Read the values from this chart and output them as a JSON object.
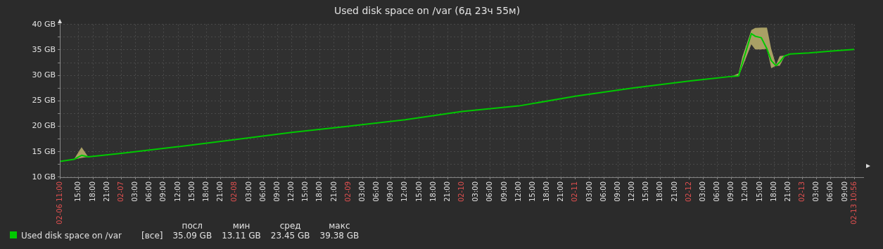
{
  "chart_data": {
    "type": "line",
    "title": "Used disk space on /var (6д 23ч 55м)",
    "x": [
      "--02-06T11:00",
      "--02-06T14:00",
      "--02-06T15:36",
      "--02-06T17:00",
      "--02-07T00:00",
      "--02-07T12:00",
      "--02-08T00:00",
      "--02-08T12:00",
      "--02-09T00:00",
      "--02-09T12:00",
      "--02-10T00:00",
      "--02-10T12:00",
      "--02-11T00:00",
      "--02-11T12:00",
      "--02-12T00:00",
      "--02-12T09:00",
      "--02-12T10:30",
      "--02-12T11:18",
      "--02-12T13:12",
      "--02-12T14:00",
      "--02-12T15:18",
      "--02-12T16:30",
      "--02-12T17:24",
      "--02-12T18:24",
      "--02-12T19:12",
      "--02-12T20:12",
      "--02-12T21:24",
      "--02-13T01:24",
      "--02-13T06:18",
      "--02-13T10:56"
    ],
    "series": [
      {
        "name": "Used disk space on /var",
        "color": "#00c800",
        "values": [
          13.1,
          13.5,
          14.3,
          14.0,
          14.7,
          16.0,
          17.4,
          18.8,
          20.0,
          21.3,
          22.9,
          24.0,
          25.9,
          27.5,
          28.9,
          29.8,
          29.9,
          32.4,
          38.2,
          37.7,
          37.4,
          35.2,
          32.9,
          31.9,
          32.6,
          33.8,
          34.2,
          34.4,
          34.8,
          35.1
        ],
        "lower": [
          13.1,
          13.5,
          13.8,
          14.0,
          14.7,
          16.0,
          17.4,
          18.8,
          20.0,
          21.3,
          22.9,
          24.0,
          25.9,
          27.5,
          28.9,
          29.8,
          29.8,
          31.6,
          36.1,
          35.1,
          35.1,
          35.2,
          31.4,
          31.9,
          31.9,
          33.7,
          34.2,
          34.4,
          34.8,
          35.1
        ],
        "upper": [
          13.1,
          13.5,
          15.9,
          14.0,
          14.7,
          16.0,
          17.4,
          18.8,
          20.0,
          21.3,
          22.9,
          24.0,
          25.9,
          27.5,
          28.9,
          29.8,
          30.4,
          33.7,
          38.9,
          39.3,
          39.4,
          39.4,
          35.2,
          32.1,
          33.8,
          33.9,
          34.2,
          34.4,
          34.8,
          35.1
        ]
      }
    ],
    "xlim": [
      "--02-06T11:00",
      "--02-13T10:56"
    ],
    "xticks": [
      {
        "value": "--02-06T11:00",
        "label": "02-06 11:00"
      },
      {
        "value": "--02-06T15:00",
        "label": "15:00"
      },
      {
        "value": "--02-06T18:00",
        "label": "18:00"
      },
      {
        "value": "--02-06T21:00",
        "label": "21:00"
      },
      {
        "value": "--02-07T00:00",
        "label": "02-07"
      },
      {
        "value": "--02-07T03:00",
        "label": "03:00"
      },
      {
        "value": "--02-07T06:00",
        "label": "06:00"
      },
      {
        "value": "--02-07T09:00",
        "label": "09:00"
      },
      {
        "value": "--02-07T12:00",
        "label": "12:00"
      },
      {
        "value": "--02-07T15:00",
        "label": "15:00"
      },
      {
        "value": "--02-07T18:00",
        "label": "18:00"
      },
      {
        "value": "--02-07T21:00",
        "label": "21:00"
      },
      {
        "value": "--02-08T00:00",
        "label": "02-08"
      },
      {
        "value": "--02-08T03:00",
        "label": "03:00"
      },
      {
        "value": "--02-08T06:00",
        "label": "06:00"
      },
      {
        "value": "--02-08T09:00",
        "label": "09:00"
      },
      {
        "value": "--02-08T12:00",
        "label": "12:00"
      },
      {
        "value": "--02-08T15:00",
        "label": "15:00"
      },
      {
        "value": "--02-08T18:00",
        "label": "18:00"
      },
      {
        "value": "--02-08T21:00",
        "label": "21:00"
      },
      {
        "value": "--02-09T00:00",
        "label": "02-09"
      },
      {
        "value": "--02-09T03:00",
        "label": "03:00"
      },
      {
        "value": "--02-09T06:00",
        "label": "06:00"
      },
      {
        "value": "--02-09T09:00",
        "label": "09:00"
      },
      {
        "value": "--02-09T12:00",
        "label": "12:00"
      },
      {
        "value": "--02-09T15:00",
        "label": "15:00"
      },
      {
        "value": "--02-09T18:00",
        "label": "18:00"
      },
      {
        "value": "--02-09T21:00",
        "label": "21:00"
      },
      {
        "value": "--02-10T00:00",
        "label": "02-10"
      },
      {
        "value": "--02-10T03:00",
        "label": "03:00"
      },
      {
        "value": "--02-10T06:00",
        "label": "06:00"
      },
      {
        "value": "--02-10T09:00",
        "label": "09:00"
      },
      {
        "value": "--02-10T12:00",
        "label": "12:00"
      },
      {
        "value": "--02-10T15:00",
        "label": "15:00"
      },
      {
        "value": "--02-10T18:00",
        "label": "18:00"
      },
      {
        "value": "--02-10T21:00",
        "label": "21:00"
      },
      {
        "value": "--02-11T00:00",
        "label": "02-11"
      },
      {
        "value": "--02-11T03:00",
        "label": "03:00"
      },
      {
        "value": "--02-11T06:00",
        "label": "06:00"
      },
      {
        "value": "--02-11T09:00",
        "label": "09:00"
      },
      {
        "value": "--02-11T12:00",
        "label": "12:00"
      },
      {
        "value": "--02-11T15:00",
        "label": "15:00"
      },
      {
        "value": "--02-11T18:00",
        "label": "18:00"
      },
      {
        "value": "--02-11T21:00",
        "label": "21:00"
      },
      {
        "value": "--02-12T00:00",
        "label": "02-12"
      },
      {
        "value": "--02-12T03:00",
        "label": "03:00"
      },
      {
        "value": "--02-12T06:00",
        "label": "06:00"
      },
      {
        "value": "--02-12T09:00",
        "label": "09:00"
      },
      {
        "value": "--02-12T12:00",
        "label": "12:00"
      },
      {
        "value": "--02-12T15:00",
        "label": "15:00"
      },
      {
        "value": "--02-12T18:00",
        "label": "18:00"
      },
      {
        "value": "--02-12T21:00",
        "label": "21:00"
      },
      {
        "value": "--02-13T00:00",
        "label": "02-13"
      },
      {
        "value": "--02-13T03:00",
        "label": "03:00"
      },
      {
        "value": "--02-13T06:00",
        "label": "06:00"
      },
      {
        "value": "--02-13T09:00",
        "label": "09:00"
      },
      {
        "value": "--02-13T10:56",
        "label": "02-13 10:56"
      }
    ],
    "ylim": [
      10,
      40
    ],
    "yticks": [
      {
        "value": 10,
        "label": "10 GB"
      },
      {
        "value": 12.5,
        "label": null
      },
      {
        "value": 15,
        "label": "15 GB"
      },
      {
        "value": 17.5,
        "label": null
      },
      {
        "value": 20,
        "label": "20 GB"
      },
      {
        "value": 22.5,
        "label": null
      },
      {
        "value": 25,
        "label": "25 GB"
      },
      {
        "value": 27.5,
        "label": null
      },
      {
        "value": 30,
        "label": "30 GB"
      },
      {
        "value": 32.5,
        "label": null
      },
      {
        "value": 35,
        "label": "35 GB"
      },
      {
        "value": 37.5,
        "label": null
      },
      {
        "value": 40,
        "label": "40 GB"
      }
    ],
    "grid": true,
    "legend": "bottom left",
    "marker": "none",
    "line_style": "solid",
    "annotations": [
      "[все]",
      "посл",
      "35.09 GB",
      "мин",
      "13.11 GB",
      "сред",
      "23.45 GB",
      "макс",
      "39.38 GB"
    ]
  }
}
